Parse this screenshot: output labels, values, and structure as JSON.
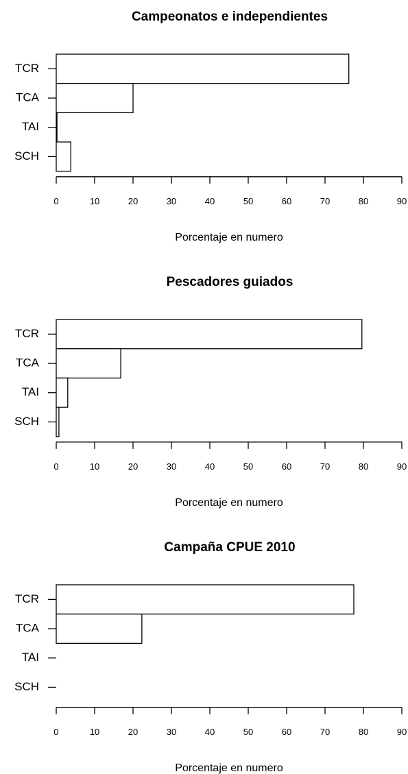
{
  "chart_data": [
    {
      "type": "bar",
      "orientation": "horizontal",
      "title": "Campeonatos e independientes",
      "categories": [
        "TCR",
        "TCA",
        "TAI",
        "SCH"
      ],
      "values": [
        76.2,
        20,
        0.2,
        3.8
      ],
      "color": "#ffffff",
      "xlabel": "Porcentaje en numero",
      "xlim": [
        0,
        90
      ],
      "xticks": [
        0,
        10,
        20,
        30,
        40,
        50,
        60,
        70,
        80,
        90
      ]
    },
    {
      "type": "bar",
      "orientation": "horizontal",
      "title": "Pescadores guiados",
      "categories": [
        "TCR",
        "TCA",
        "TAI",
        "SCH"
      ],
      "values": [
        79.6,
        16.8,
        3,
        0.7
      ],
      "color": "#ffffff",
      "xlabel": "Porcentaje en numero",
      "xlim": [
        0,
        90
      ],
      "xticks": [
        0,
        10,
        20,
        30,
        40,
        50,
        60,
        70,
        80,
        90
      ]
    },
    {
      "type": "bar",
      "orientation": "horizontal",
      "title": "Campaña CPUE 2010",
      "categories": [
        "TCR",
        "TCA",
        "TAI",
        "SCH"
      ],
      "values": [
        77.5,
        22.3,
        0,
        0
      ],
      "color": "#ffffff",
      "xlabel": "Porcentaje en numero",
      "xlim": [
        0,
        90
      ],
      "xticks": [
        0,
        10,
        20,
        30,
        40,
        50,
        60,
        70,
        80,
        90
      ]
    }
  ]
}
